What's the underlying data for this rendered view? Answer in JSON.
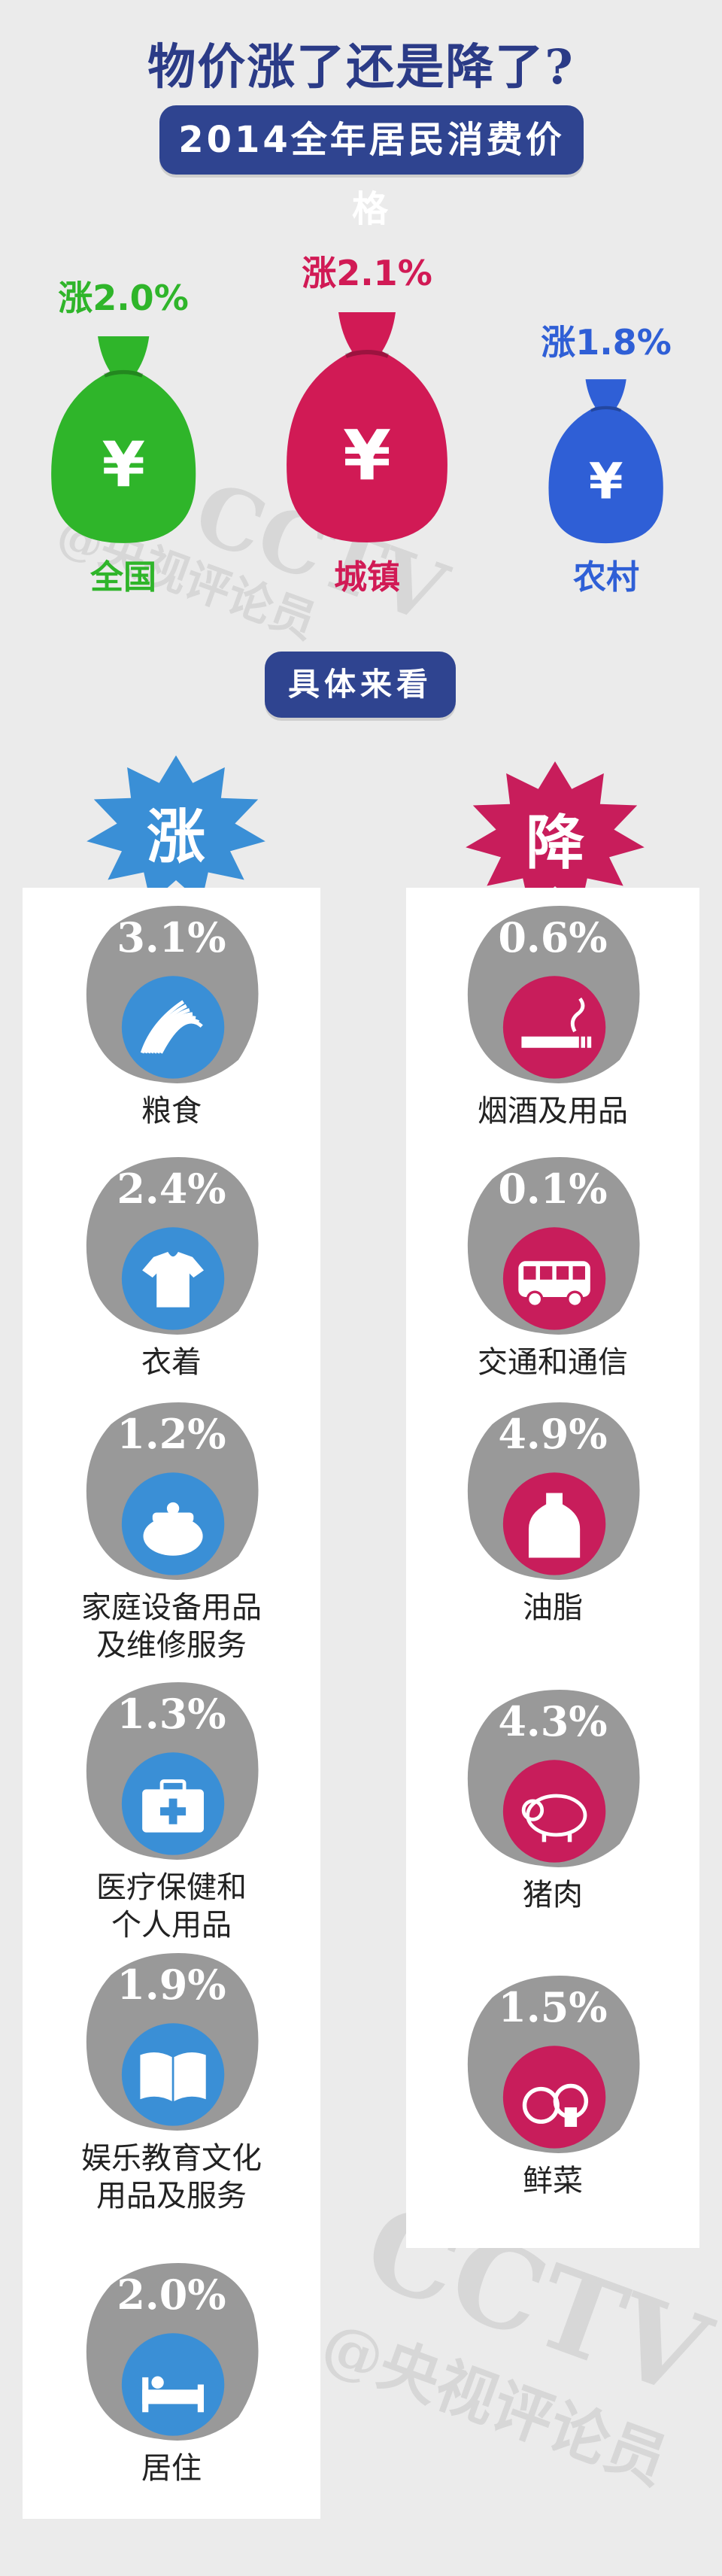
{
  "header": {
    "title": "物价涨了还是降了?",
    "subtitle": "2014全年居民消费价格"
  },
  "chart_data": [
    {
      "type": "bar",
      "title": "2014全年居民消费价格",
      "categories": [
        "全国",
        "城镇",
        "农村"
      ],
      "values": [
        2.0,
        2.1,
        1.8
      ],
      "value_labels": [
        "涨2.0%",
        "涨2.1%",
        "涨1.8%"
      ],
      "colors": [
        "#2fb52a",
        "#d11a55",
        "#2f5fd6"
      ]
    },
    {
      "type": "bar",
      "title": "涨",
      "categories": [
        "粮食",
        "衣着",
        "家庭设备用品及维修服务",
        "医疗保健和个人用品",
        "娱乐教育文化用品及服务",
        "居住"
      ],
      "values": [
        3.1,
        2.4,
        1.2,
        1.3,
        1.9,
        2.0
      ],
      "value_labels": [
        "3.1%",
        "2.4%",
        "1.2%",
        "1.3%",
        "1.9%",
        "2.0%"
      ]
    },
    {
      "type": "bar",
      "title": "降",
      "categories": [
        "烟酒及用品",
        "交通和通信",
        "油脂",
        "猪肉",
        "鲜菜"
      ],
      "values": [
        0.6,
        0.1,
        4.9,
        4.3,
        1.5
      ],
      "value_labels": [
        "0.6%",
        "0.1%",
        "4.9%",
        "4.3%",
        "1.5%"
      ]
    }
  ],
  "bags": [
    {
      "label": "全国",
      "value_text": "涨2.0%",
      "color": "#2fb52a",
      "symbol": "¥",
      "icon": "money-bag-icon"
    },
    {
      "label": "城镇",
      "value_text": "涨2.1%",
      "color": "#d11a55",
      "symbol": "¥",
      "icon": "money-bag-icon"
    },
    {
      "label": "农村",
      "value_text": "涨1.8%",
      "color": "#2f5fd6",
      "symbol": "¥",
      "icon": "money-bag-icon"
    }
  ],
  "detail_label": "具体来看",
  "rise": {
    "heading": "涨",
    "color": "#3a8fd6",
    "items": [
      {
        "pct": "3.1%",
        "label_lines": [
          "粮食"
        ],
        "icon": "wheat-icon"
      },
      {
        "pct": "2.4%",
        "label_lines": [
          "衣着"
        ],
        "icon": "tshirt-icon"
      },
      {
        "pct": "1.2%",
        "label_lines": [
          "家庭设备用品",
          "及维修服务"
        ],
        "icon": "pot-icon"
      },
      {
        "pct": "1.3%",
        "label_lines": [
          "医疗保健和",
          "个人用品"
        ],
        "icon": "medical-kit-icon"
      },
      {
        "pct": "1.9%",
        "label_lines": [
          "娱乐教育文化",
          "用品及服务"
        ],
        "icon": "book-icon"
      },
      {
        "pct": "2.0%",
        "label_lines": [
          "居住"
        ],
        "icon": "bed-icon"
      }
    ]
  },
  "fall": {
    "heading": "降",
    "color": "#c81d5b",
    "items": [
      {
        "pct": "0.6%",
        "label_lines": [
          "烟酒及用品"
        ],
        "icon": "cigarette-icon"
      },
      {
        "pct": "0.1%",
        "label_lines": [
          "交通和通信"
        ],
        "icon": "bus-icon"
      },
      {
        "pct": "4.9%",
        "label_lines": [
          "油脂"
        ],
        "icon": "oil-bottle-icon"
      },
      {
        "pct": "4.3%",
        "label_lines": [
          "猪肉"
        ],
        "icon": "pig-icon"
      },
      {
        "pct": "1.5%",
        "label_lines": [
          "鲜菜"
        ],
        "icon": "vegetable-icon"
      }
    ]
  },
  "watermark": {
    "brand": "CCTV",
    "handle": "@央视评论员"
  }
}
